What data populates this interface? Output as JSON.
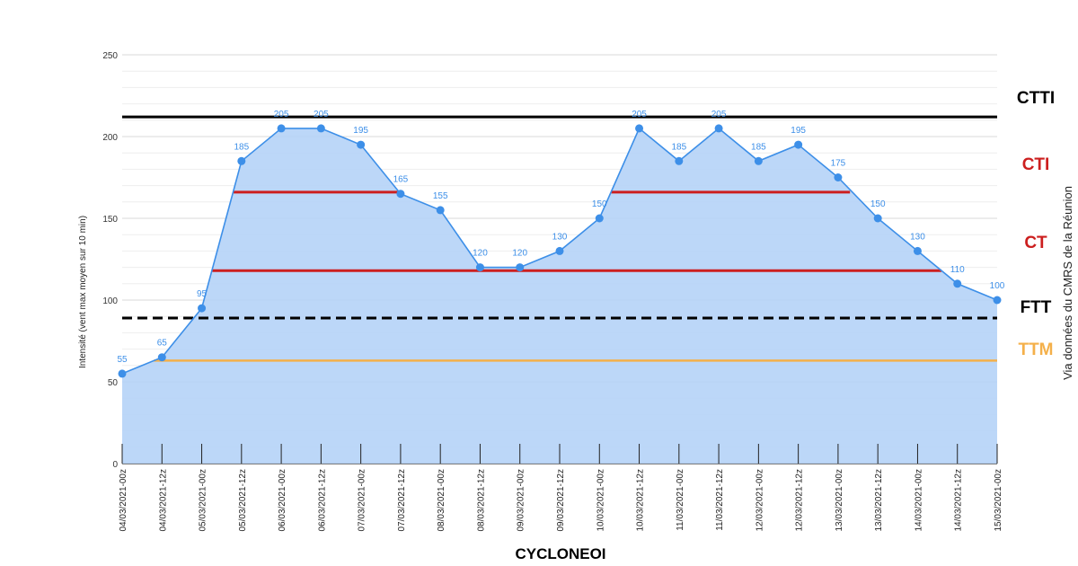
{
  "chart_data": {
    "type": "area",
    "xlabel": "CYCLONEOI",
    "ylabel": "Intensité (vent max moyen sur 10 min)",
    "ylim": [
      0,
      250
    ],
    "yticks": [
      0,
      50,
      100,
      150,
      200,
      250
    ],
    "grid": true,
    "side_note": "Via données du CMRS de la Réunion",
    "categories": [
      "04/03/2021-00z",
      "04/03/2021-12z",
      "05/03/2021-00z",
      "05/03/2021-12z",
      "06/03/2021-00z",
      "06/03/2021-12z",
      "07/03/2021-00z",
      "07/03/2021-12z",
      "08/03/2021-00z",
      "08/03/2021-12z",
      "09/03/2021-00z",
      "09/03/2021-12z",
      "10/03/2021-00z",
      "10/03/2021-12z",
      "11/03/2021-00z",
      "11/03/2021-12z",
      "12/03/2021-00z",
      "12/03/2021-12z",
      "13/03/2021-00z",
      "13/03/2021-12z",
      "14/03/2021-00z",
      "14/03/2021-12z",
      "15/03/2021-00z"
    ],
    "values": [
      55,
      65,
      95,
      185,
      205,
      205,
      195,
      165,
      155,
      120,
      120,
      130,
      150,
      205,
      185,
      205,
      185,
      195,
      175,
      150,
      130,
      110,
      100
    ],
    "series_color": "#3d8fe8",
    "fill_color": "#b5d3f7",
    "thresholds": [
      {
        "label": "CTTI",
        "value": 212,
        "color": "#000000",
        "dashed": false,
        "segments": [
          [
            0,
            22
          ]
        ]
      },
      {
        "label": "CTI",
        "value": 166,
        "color": "#cc1f1f",
        "dashed": false,
        "segments": [
          [
            2.8,
            6.95
          ],
          [
            12.3,
            18.3
          ]
        ]
      },
      {
        "label": "CT",
        "value": 118,
        "color": "#cc1f1f",
        "dashed": false,
        "segments": [
          [
            2.27,
            20.6
          ]
        ]
      },
      {
        "label": "FTT",
        "value": 89,
        "color": "#000000",
        "dashed": true,
        "segments": [
          [
            0,
            22
          ]
        ]
      },
      {
        "label": "TTM",
        "value": 63,
        "color": "#f4b04a",
        "dashed": false,
        "segments": [
          [
            0.8,
            22
          ]
        ]
      }
    ]
  }
}
